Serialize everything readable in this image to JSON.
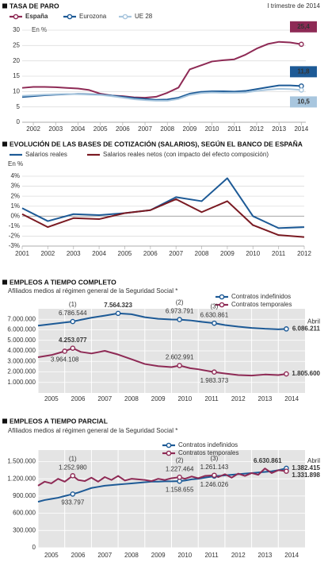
{
  "chart_data": [
    {
      "type": "line",
      "title": "TASA DE PARO",
      "annotation": "I trimestre de 2014",
      "unit": "En %",
      "x": [
        2001.5,
        2002,
        2002.5,
        2003,
        2003.5,
        2004,
        2004.5,
        2005,
        2005.5,
        2006,
        2006.5,
        2007,
        2007.5,
        2008,
        2008.5,
        2009,
        2009.5,
        2010,
        2010.5,
        2011,
        2011.5,
        2012,
        2012.5,
        2013,
        2013.5,
        2014
      ],
      "series": [
        {
          "name": "España",
          "color": "#8e2a55",
          "values": [
            11.2,
            11.5,
            11.5,
            11.4,
            11.2,
            11.0,
            10.5,
            9.3,
            8.7,
            8.5,
            8.1,
            8.0,
            8.3,
            9.6,
            11.3,
            17.2,
            18.5,
            19.8,
            20.2,
            20.5,
            22.0,
            24.0,
            25.5,
            26.2,
            26.0,
            25.4
          ],
          "value_labels": [
            null,
            null,
            null,
            null,
            null,
            null,
            null,
            null,
            null,
            null,
            null,
            null,
            null,
            null,
            null,
            null,
            null,
            null,
            null,
            null,
            null,
            null,
            null,
            null,
            null,
            "25,4"
          ]
        },
        {
          "name": "Eurozona",
          "color": "#1d5a96",
          "values": [
            8.2,
            8.5,
            8.8,
            9.0,
            9.1,
            9.2,
            9.1,
            9.0,
            8.7,
            8.3,
            7.9,
            7.6,
            7.3,
            7.4,
            8.0,
            9.3,
            9.9,
            10.1,
            10.1,
            10.0,
            10.2,
            10.8,
            11.4,
            12.0,
            12.0,
            11.8
          ],
          "value_labels": [
            null,
            null,
            null,
            null,
            null,
            null,
            null,
            null,
            null,
            null,
            null,
            null,
            null,
            null,
            null,
            null,
            null,
            null,
            null,
            null,
            null,
            null,
            null,
            null,
            null,
            "11,8"
          ]
        },
        {
          "name": "UE 28",
          "color": "#a8c6de",
          "values": [
            8.6,
            8.8,
            9.0,
            9.1,
            9.2,
            9.1,
            9.0,
            8.9,
            8.5,
            8.0,
            7.5,
            7.2,
            7.0,
            7.0,
            7.6,
            8.9,
            9.5,
            9.7,
            9.6,
            9.6,
            9.7,
            10.2,
            10.6,
            10.9,
            10.8,
            10.5
          ],
          "value_labels": [
            null,
            null,
            null,
            null,
            null,
            null,
            null,
            null,
            null,
            null,
            null,
            null,
            null,
            null,
            null,
            null,
            null,
            null,
            null,
            null,
            null,
            null,
            null,
            null,
            null,
            "10,5"
          ]
        }
      ],
      "xlim": [
        2001.5,
        2014.2
      ],
      "xticks": [
        2002,
        2003,
        2004,
        2005,
        2006,
        2007,
        2008,
        2009,
        2010,
        2011,
        2012,
        2013,
        2014
      ],
      "ylim": [
        0,
        30
      ],
      "yticks": [
        0,
        5,
        10,
        15,
        20,
        25,
        30
      ],
      "grid": true
    },
    {
      "type": "line",
      "title": "EVOLUCIÓN DE LAS BASES DE COTIZACIÓN (SALARIOS), SEGÚN EL BANCO DE ESPAÑA",
      "unit": "En %",
      "x": [
        2001,
        2002,
        2003,
        2004,
        2005,
        2006,
        2007,
        2008,
        2009,
        2010,
        2011,
        2012
      ],
      "series": [
        {
          "name": "Salarios reales",
          "color": "#1d5a96",
          "values": [
            0.8,
            -0.5,
            0.2,
            0.1,
            0.3,
            0.6,
            1.9,
            1.5,
            3.8,
            0.0,
            -1.2,
            -1.1
          ]
        },
        {
          "name": "Salarios reales netos (con impacto del efecto composición)",
          "color": "#7a1a22",
          "values": [
            0.2,
            -1.1,
            -0.2,
            -0.3,
            0.3,
            0.6,
            1.7,
            0.4,
            1.5,
            -0.9,
            -1.9,
            -2.1
          ]
        }
      ],
      "xlim": [
        2001,
        2012
      ],
      "xticks": [
        2001,
        2002,
        2003,
        2004,
        2005,
        2006,
        2007,
        2008,
        2009,
        2010,
        2011,
        2012
      ],
      "ylim": [
        -3,
        4
      ],
      "yticks": [
        {
          "value": -3,
          "label": "-3%"
        },
        {
          "value": -2,
          "label": "-2%"
        },
        {
          "value": -1,
          "label": "-1%"
        },
        {
          "value": 0,
          "label": "0%"
        },
        {
          "value": 1,
          "label": "1%"
        },
        {
          "value": 2,
          "label": "2%"
        },
        {
          "value": 3,
          "label": "3%"
        },
        {
          "value": 4,
          "label": "4%"
        }
      ],
      "grid": true
    },
    {
      "type": "line",
      "title": "EMPLEOS A TIEMPO COMPLETO",
      "unit": "Afiliados medios al régimen general de la Seguridad Social *",
      "note": "Abril",
      "x": [
        2005,
        2005.5,
        2006,
        2006.3,
        2006.6,
        2007,
        2007.5,
        2008,
        2008.5,
        2009,
        2009.5,
        2010,
        2010.3,
        2010.7,
        2011,
        2011.6,
        2012,
        2012.5,
        2013,
        2013.5,
        2014,
        2014.3
      ],
      "series": [
        {
          "name": "Contratos indefinidos",
          "color": "#1d5a96",
          "values": [
            6400000,
            6550000,
            6700000,
            6786544,
            6950000,
            7150000,
            7350000,
            7564323,
            7480000,
            7200000,
            7050000,
            6980000,
            6973791,
            6900000,
            6800000,
            6630861,
            6450000,
            6300000,
            6180000,
            6100000,
            6050000,
            6086211
          ],
          "value_labels": [
            null,
            null,
            null,
            "6.786.544",
            null,
            null,
            null,
            "7.564.323",
            null,
            null,
            null,
            null,
            "6.973.791",
            null,
            null,
            "6.630.861",
            null,
            null,
            null,
            null,
            null,
            "6.086.211"
          ]
        },
        {
          "name": "Contratos temporales",
          "color": "#8e2a55",
          "values": [
            3400000,
            3600000,
            3964108,
            4253077,
            3900000,
            3750000,
            4000000,
            3650000,
            3200000,
            2750000,
            2550000,
            2450000,
            2602991,
            2350000,
            2250000,
            1983373,
            1850000,
            1700000,
            1650000,
            1750000,
            1700000,
            1805600
          ],
          "value_labels": [
            null,
            null,
            "3.964.108",
            "4.253.077",
            null,
            null,
            null,
            null,
            null,
            null,
            null,
            null,
            "2.602.991",
            null,
            null,
            "1.983.373",
            null,
            null,
            null,
            null,
            null,
            "1.805.600"
          ]
        }
      ],
      "markers": [
        {
          "x": 2006.3,
          "label": "(1)"
        },
        {
          "x": 2010.3,
          "label": "(2)"
        },
        {
          "x": 2011.6,
          "label": "(3)"
        }
      ],
      "xlim": [
        2005,
        2015
      ],
      "xticks": [
        {
          "value": 2005.5,
          "label": "2005"
        },
        {
          "value": 2006.5,
          "label": "2006"
        },
        {
          "value": 2007.5,
          "label": "2007"
        },
        {
          "value": 2008.5,
          "label": "2008"
        },
        {
          "value": 2009.5,
          "label": "2009"
        },
        {
          "value": 2010.5,
          "label": "2010"
        },
        {
          "value": 2011.5,
          "label": "2011"
        },
        {
          "value": 2012.5,
          "label": "2012"
        },
        {
          "value": 2013.5,
          "label": "2013"
        },
        {
          "value": 2014.5,
          "label": "2014"
        }
      ],
      "ylim": [
        0,
        8000000
      ],
      "yticks": [
        {
          "value": 1000000,
          "label": "1.000.000"
        },
        {
          "value": 2000000,
          "label": "2.000.000"
        },
        {
          "value": 3000000,
          "label": "3.000.000"
        },
        {
          "value": 4000000,
          "label": "4.000.000"
        },
        {
          "value": 5000000,
          "label": "5.000.000"
        },
        {
          "value": 6000000,
          "label": "6.000.000"
        },
        {
          "value": 7000000,
          "label": "7.000.000"
        }
      ],
      "grid": true
    },
    {
      "type": "line",
      "title": "EMPLEOS A TIEMPO PARCIAL",
      "unit": "Afiliados medios al régimen general de la Seguridad Social *",
      "note": "Abril",
      "x": [
        2005,
        2005.25,
        2005.5,
        2005.75,
        2006,
        2006.3,
        2006.5,
        2006.75,
        2007,
        2007.25,
        2007.5,
        2007.75,
        2008,
        2008.25,
        2008.5,
        2008.75,
        2009,
        2009.25,
        2009.5,
        2009.75,
        2010,
        2010.3,
        2010.5,
        2010.75,
        2011,
        2011.25,
        2011.6,
        2011.75,
        2012,
        2012.25,
        2012.5,
        2012.75,
        2013,
        2013.25,
        2013.5,
        2013.75,
        2014,
        2014.3
      ],
      "series": [
        {
          "name": "Contratos indefinidos",
          "color": "#1d5a96",
          "values": [
            800000,
            830000,
            850000,
            870000,
            900000,
            933797,
            960000,
            1000000,
            1040000,
            1060000,
            1080000,
            1090000,
            1100000,
            1110000,
            1120000,
            1130000,
            1140000,
            1150000,
            1150000,
            1155000,
            1155000,
            1158655,
            1170000,
            1190000,
            1200000,
            1220000,
            1246026,
            1250000,
            1260000,
            1270000,
            1280000,
            1290000,
            1300000,
            1310000,
            1320000,
            1330000,
            1350000,
            1382415
          ],
          "value_labels": [
            null,
            null,
            null,
            null,
            null,
            "933.797",
            null,
            null,
            null,
            null,
            null,
            null,
            null,
            null,
            null,
            null,
            null,
            null,
            null,
            null,
            null,
            "1.158.655",
            null,
            null,
            null,
            null,
            "1.246.026",
            null,
            null,
            null,
            null,
            null,
            null,
            null,
            null,
            null,
            null,
            "1.382.415"
          ]
        },
        {
          "name": "Contratos temporales",
          "color": "#8e2a55",
          "values": [
            1080000,
            1150000,
            1120000,
            1200000,
            1150000,
            1252980,
            1180000,
            1160000,
            1220000,
            1150000,
            1230000,
            1180000,
            1250000,
            1170000,
            1200000,
            1190000,
            1180000,
            1160000,
            1200000,
            1180000,
            1210000,
            1227464,
            1200000,
            1240000,
            1210000,
            1250000,
            1261143,
            1230000,
            1280000,
            1220000,
            1290000,
            1250000,
            1300000,
            1270000,
            1380000,
            1300000,
            1350000,
            1331898
          ],
          "value_labels": [
            null,
            null,
            null,
            null,
            null,
            "1.252.980",
            null,
            null,
            null,
            null,
            null,
            null,
            null,
            null,
            null,
            null,
            null,
            null,
            null,
            null,
            null,
            "1.227.464",
            null,
            null,
            null,
            null,
            "1.261.143",
            null,
            null,
            null,
            null,
            null,
            null,
            null,
            null,
            null,
            null,
            "1.331.898"
          ]
        }
      ],
      "markers": [
        {
          "x": 2006.3,
          "label": "(1)"
        },
        {
          "x": 2010.3,
          "label": "(2)"
        },
        {
          "x": 2011.6,
          "label": "(3)"
        }
      ],
      "annotations": [
        {
          "x": 2013.6,
          "text": "6.630.861"
        }
      ],
      "xlim": [
        2005,
        2015
      ],
      "xticks": [
        {
          "value": 2005.5,
          "label": "2005"
        },
        {
          "value": 2006.5,
          "label": "2006"
        },
        {
          "value": 2007.5,
          "label": "2007"
        },
        {
          "value": 2008.5,
          "label": "2008"
        },
        {
          "value": 2009.5,
          "label": "2009"
        },
        {
          "value": 2010.5,
          "label": "2010"
        },
        {
          "value": 2011.5,
          "label": "2011"
        },
        {
          "value": 2012.5,
          "label": "2012"
        },
        {
          "value": 2013.5,
          "label": "2013"
        },
        {
          "value": 2014.5,
          "label": "2014"
        }
      ],
      "ylim": [
        0,
        1700000
      ],
      "yticks": [
        0,
        {
          "value": 300000,
          "label": "300.000"
        },
        {
          "value": 600000,
          "label": "600.000"
        },
        {
          "value": 900000,
          "label": "900.000"
        },
        {
          "value": 1200000,
          "label": "1.200.000"
        },
        {
          "value": 1500000,
          "label": "1.500.000"
        }
      ],
      "grid": true
    }
  ]
}
